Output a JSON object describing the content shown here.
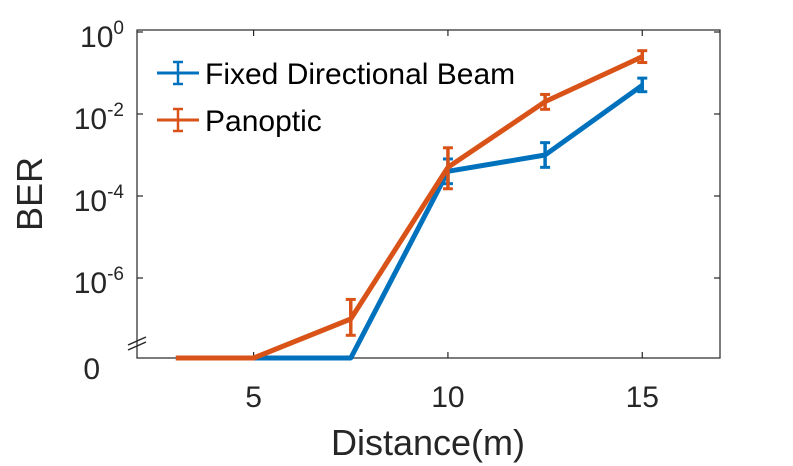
{
  "chart_data": {
    "type": "line",
    "xlabel": "Distance(m)",
    "ylabel": "BER",
    "xlim": [
      2,
      17
    ],
    "x_ticks": [
      "5",
      "10",
      "15"
    ],
    "y_scale": "log (broken axis with zero level at bottom)",
    "y_ticks": [
      {
        "base": "10",
        "exp": "0"
      },
      {
        "base": "10",
        "exp": "-2"
      },
      {
        "base": "10",
        "exp": "-4"
      },
      {
        "base": "10",
        "exp": "-6"
      }
    ],
    "y_zero_label": "0",
    "grid": false,
    "legend_position": "top-left",
    "series": [
      {
        "name": "Fixed Directional Beam",
        "color": "#0072bd",
        "points": [
          {
            "x": 3,
            "y": 0,
            "err_low": 0,
            "err_high": 0
          },
          {
            "x": 5,
            "y": 0,
            "err_low": 0,
            "err_high": 0
          },
          {
            "x": 7.5,
            "y": 0,
            "err_low": 0,
            "err_high": 0
          },
          {
            "x": 10,
            "y": 0.0004,
            "err_low": 0.0002,
            "err_high": 0.0008
          },
          {
            "x": 12.5,
            "y": 0.001,
            "err_low": 0.0005,
            "err_high": 0.002
          },
          {
            "x": 15,
            "y": 0.05,
            "err_low": 0.035,
            "err_high": 0.075
          }
        ]
      },
      {
        "name": "Panoptic",
        "color": "#d95319",
        "points": [
          {
            "x": 3,
            "y": 0,
            "err_low": 0,
            "err_high": 0
          },
          {
            "x": 5,
            "y": 0,
            "err_low": 0,
            "err_high": 0
          },
          {
            "x": 7.5,
            "y": 1e-07,
            "err_low": 4e-08,
            "err_high": 3e-07
          },
          {
            "x": 10,
            "y": 0.0005,
            "err_low": 0.00015,
            "err_high": 0.0015
          },
          {
            "x": 12.5,
            "y": 0.02,
            "err_low": 0.013,
            "err_high": 0.03
          },
          {
            "x": 15,
            "y": 0.25,
            "err_low": 0.18,
            "err_high": 0.35
          }
        ]
      }
    ]
  }
}
